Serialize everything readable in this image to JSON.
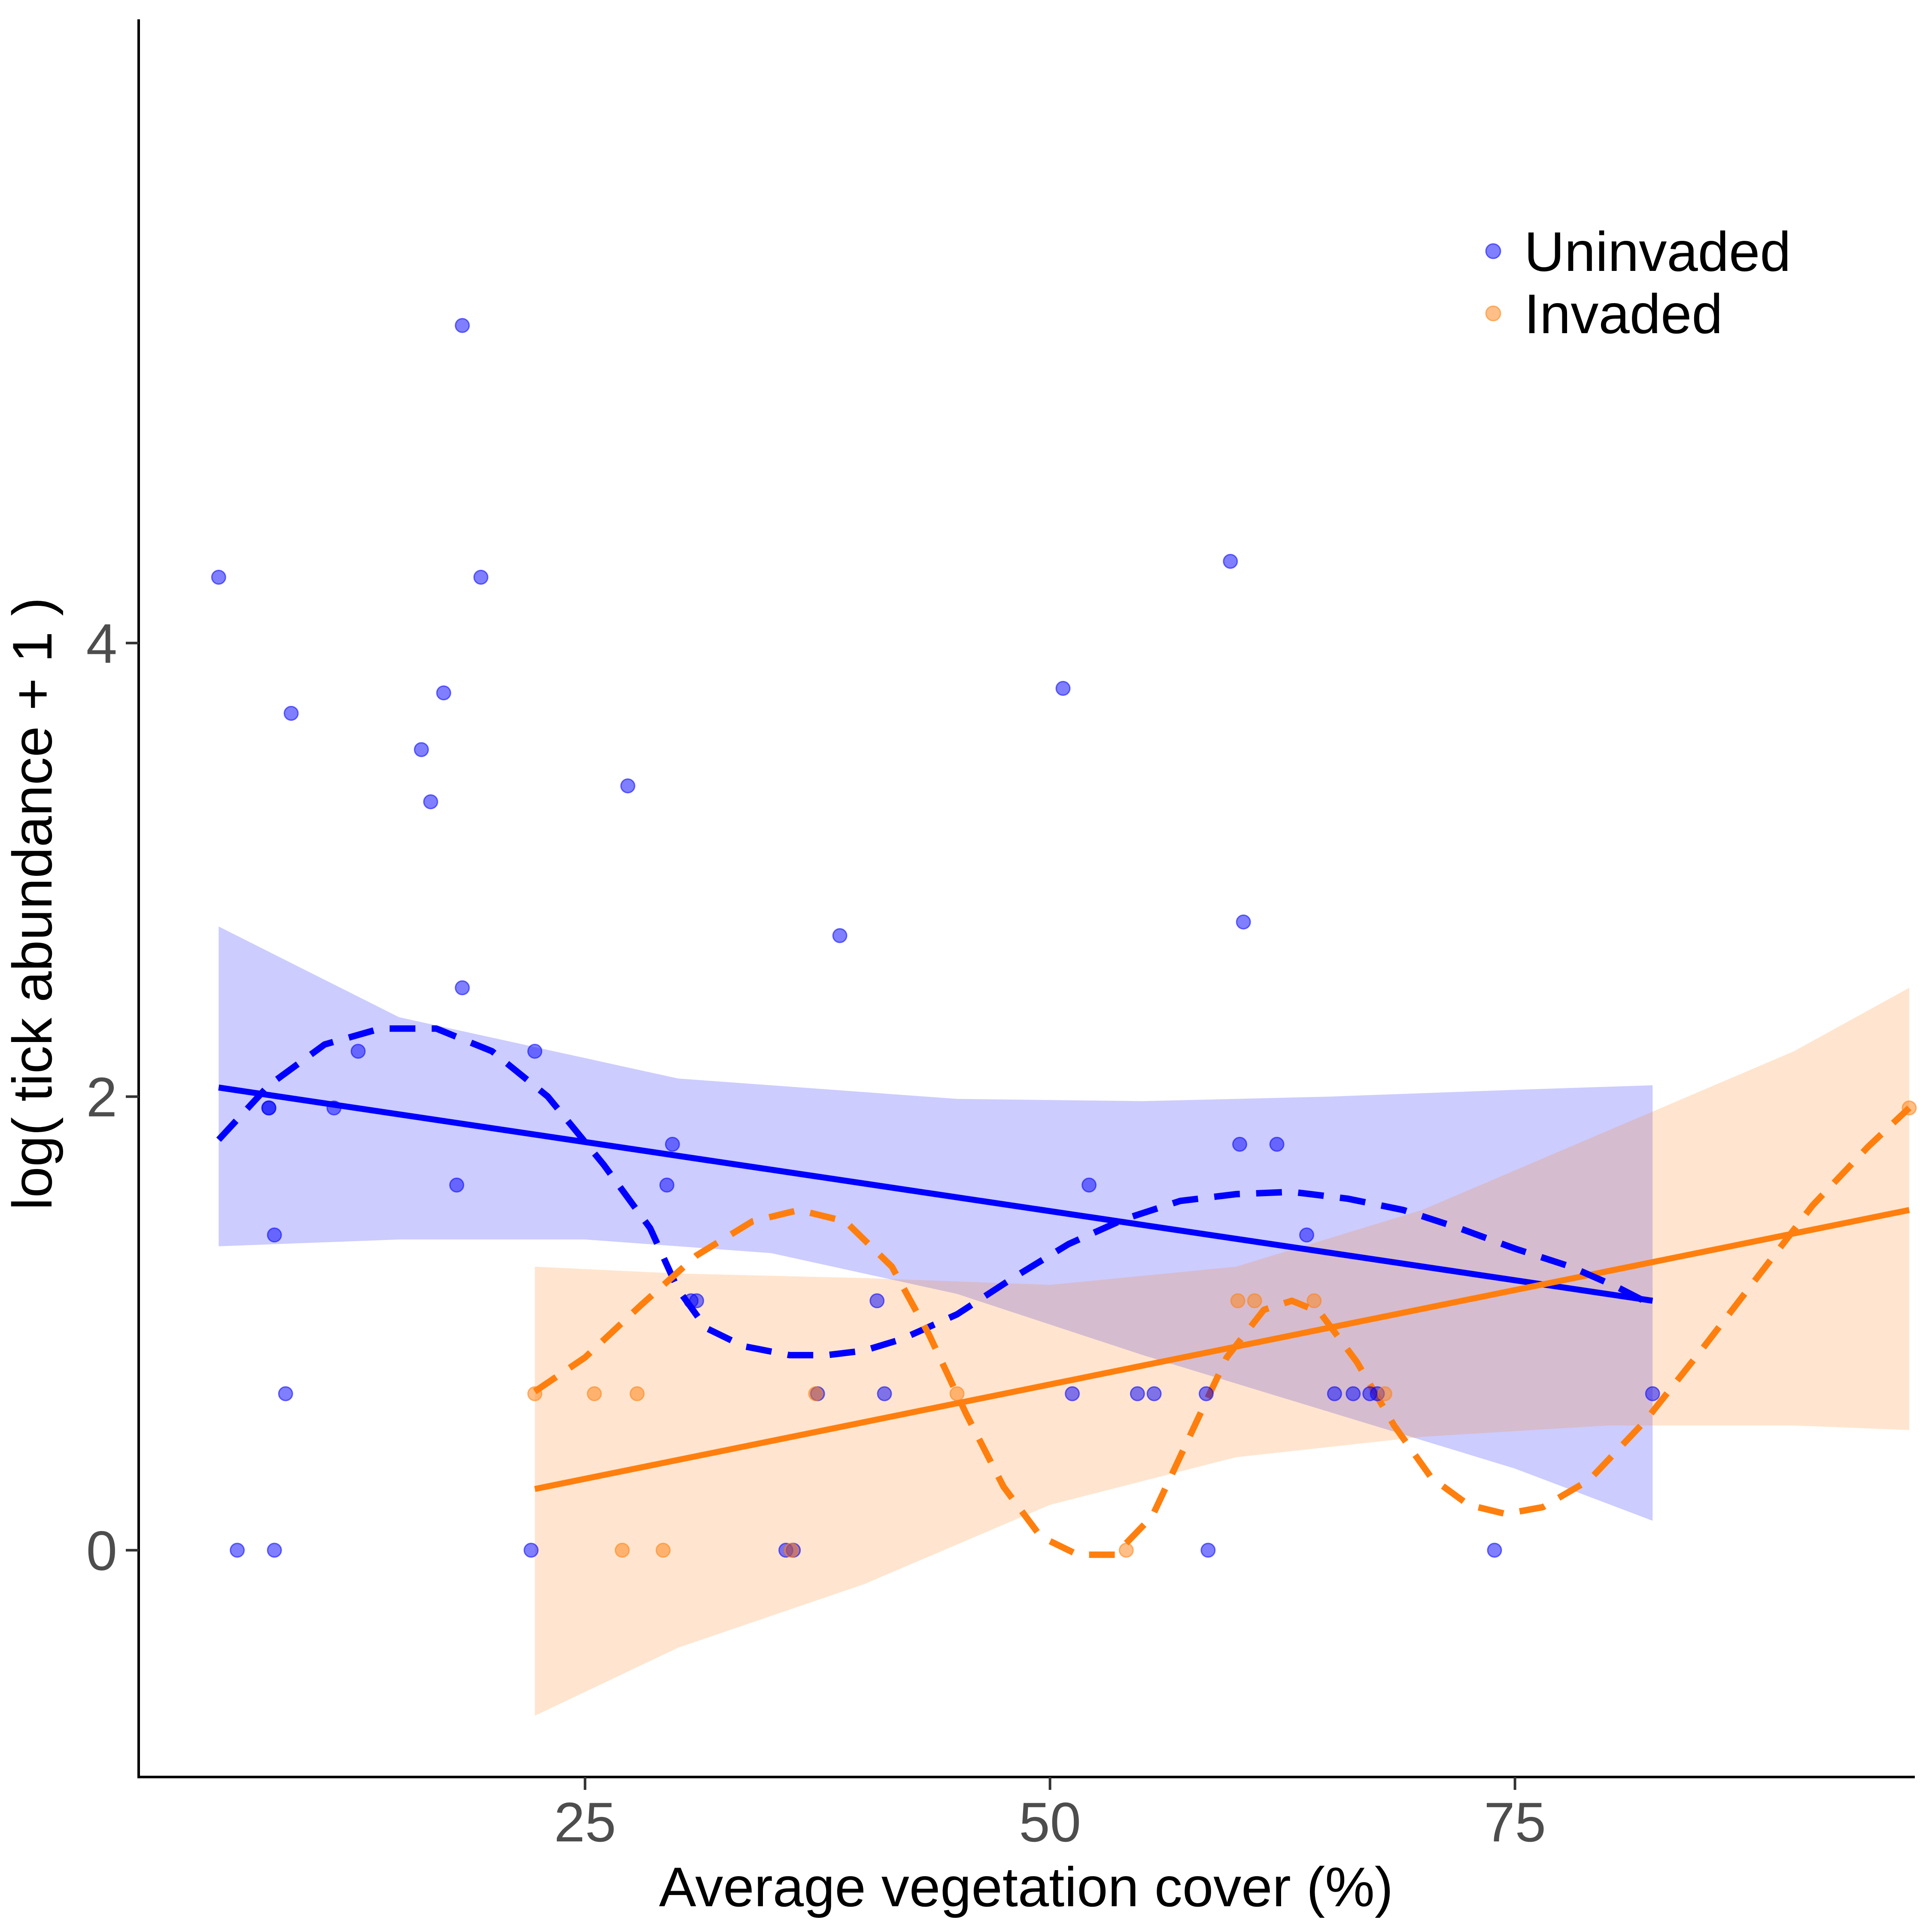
{
  "chart_data": {
    "type": "scatter",
    "title": "",
    "xlabel": "Average vegetation cover (%)",
    "ylabel": "log( tick abundance + 1 )",
    "xlim": [
      1,
      96.5
    ],
    "ylim": [
      -1.0,
      6.75
    ],
    "xticks": [
      25,
      50,
      75
    ],
    "yticks": [
      0,
      2,
      4
    ],
    "grid": false,
    "legend_position": "top-right",
    "series": [
      {
        "name": "Uninvaded",
        "color": "#0000ff",
        "points": [
          [
            5.3,
            4.29
          ],
          [
            6.3,
            0.0
          ],
          [
            8.0,
            1.95
          ],
          [
            8.0,
            1.95
          ],
          [
            8.3,
            1.39
          ],
          [
            8.3,
            0.0
          ],
          [
            8.9,
            0.69
          ],
          [
            9.2,
            3.69
          ],
          [
            11.5,
            1.95
          ],
          [
            12.8,
            2.2
          ],
          [
            16.2,
            3.53
          ],
          [
            16.7,
            3.3
          ],
          [
            17.4,
            3.78
          ],
          [
            18.1,
            1.61
          ],
          [
            18.4,
            2.48
          ],
          [
            18.4,
            5.4
          ],
          [
            19.4,
            4.29
          ],
          [
            22.1,
            0.0
          ],
          [
            22.3,
            2.2
          ],
          [
            27.3,
            3.37
          ],
          [
            29.4,
            1.61
          ],
          [
            29.7,
            1.79
          ],
          [
            30.7,
            1.1
          ],
          [
            31.0,
            1.1
          ],
          [
            35.8,
            0.0
          ],
          [
            36.2,
            0.0
          ],
          [
            37.5,
            0.69
          ],
          [
            38.7,
            2.71
          ],
          [
            40.7,
            1.1
          ],
          [
            41.1,
            0.69
          ],
          [
            50.7,
            3.8
          ],
          [
            51.2,
            0.69
          ],
          [
            52.1,
            1.61
          ],
          [
            54.7,
            0.69
          ],
          [
            55.6,
            0.69
          ],
          [
            58.4,
            0.69
          ],
          [
            58.5,
            0.0
          ],
          [
            59.7,
            4.36
          ],
          [
            60.2,
            1.79
          ],
          [
            60.4,
            2.77
          ],
          [
            62.2,
            1.79
          ],
          [
            63.8,
            1.39
          ],
          [
            65.3,
            0.69
          ],
          [
            66.3,
            0.69
          ],
          [
            67.2,
            0.69
          ],
          [
            67.6,
            0.69
          ],
          [
            73.9,
            0.0
          ],
          [
            82.4,
            0.69
          ]
        ],
        "fit": {
          "x0": 5.3,
          "y0": 2.04,
          "x1": 82.4,
          "y1": 1.1
        },
        "band_upper": [
          [
            5.3,
            2.75
          ],
          [
            15.0,
            2.35
          ],
          [
            30.0,
            2.08
          ],
          [
            45.0,
            1.99
          ],
          [
            55.0,
            1.98
          ],
          [
            65.0,
            2.0
          ],
          [
            75.0,
            2.03
          ],
          [
            82.4,
            2.05
          ]
        ],
        "band_lower": [
          [
            5.3,
            1.34
          ],
          [
            15.0,
            1.37
          ],
          [
            25.0,
            1.37
          ],
          [
            35.0,
            1.31
          ],
          [
            45.0,
            1.13
          ],
          [
            55.0,
            0.86
          ],
          [
            65.0,
            0.61
          ],
          [
            75.0,
            0.36
          ],
          [
            82.4,
            0.13
          ]
        ],
        "smooth": [
          [
            5.3,
            1.81
          ],
          [
            8.0,
            2.05
          ],
          [
            11.0,
            2.23
          ],
          [
            14.0,
            2.3
          ],
          [
            17.0,
            2.3
          ],
          [
            20.0,
            2.2
          ],
          [
            23.0,
            2.0
          ],
          [
            26.0,
            1.7
          ],
          [
            28.5,
            1.42
          ],
          [
            30.0,
            1.15
          ],
          [
            31.5,
            0.98
          ],
          [
            33.5,
            0.9
          ],
          [
            36.0,
            0.86
          ],
          [
            38.0,
            0.86
          ],
          [
            40.0,
            0.88
          ],
          [
            42.0,
            0.93
          ],
          [
            45.0,
            1.04
          ],
          [
            48.0,
            1.2
          ],
          [
            51.0,
            1.35
          ],
          [
            54.0,
            1.46
          ],
          [
            57.0,
            1.54
          ],
          [
            60.0,
            1.57
          ],
          [
            63.0,
            1.58
          ],
          [
            66.0,
            1.55
          ],
          [
            69.0,
            1.5
          ],
          [
            72.0,
            1.42
          ],
          [
            75.0,
            1.33
          ],
          [
            78.0,
            1.25
          ],
          [
            80.5,
            1.16
          ],
          [
            82.4,
            1.08
          ]
        ]
      },
      {
        "name": "Invaded",
        "color": "#ff7f0e",
        "points": [
          [
            22.3,
            0.69
          ],
          [
            25.5,
            0.69
          ],
          [
            27.0,
            0.0
          ],
          [
            27.8,
            0.69
          ],
          [
            29.2,
            0.0
          ],
          [
            36.1,
            0.0
          ],
          [
            37.4,
            0.69
          ],
          [
            45.0,
            0.69
          ],
          [
            54.1,
            0.0
          ],
          [
            60.1,
            1.1
          ],
          [
            61.0,
            1.1
          ],
          [
            64.2,
            1.1
          ],
          [
            68.0,
            0.69
          ],
          [
            96.2,
            1.95
          ]
        ],
        "fit": {
          "x0": 22.3,
          "y0": 0.27,
          "x1": 96.2,
          "y1": 1.5
        },
        "band_upper": [
          [
            22.3,
            1.25
          ],
          [
            30.0,
            1.22
          ],
          [
            40.0,
            1.2
          ],
          [
            50.0,
            1.17
          ],
          [
            60.0,
            1.25
          ],
          [
            70.0,
            1.5
          ],
          [
            80.0,
            1.85
          ],
          [
            90.0,
            2.2
          ],
          [
            96.2,
            2.48
          ]
        ],
        "band_lower": [
          [
            22.3,
            -0.73
          ],
          [
            30.0,
            -0.43
          ],
          [
            40.0,
            -0.15
          ],
          [
            50.0,
            0.2
          ],
          [
            60.0,
            0.41
          ],
          [
            70.0,
            0.5
          ],
          [
            80.0,
            0.55
          ],
          [
            90.0,
            0.55
          ],
          [
            96.2,
            0.53
          ]
        ],
        "smooth": [
          [
            22.3,
            0.7
          ],
          [
            25.0,
            0.85
          ],
          [
            28.0,
            1.08
          ],
          [
            31.0,
            1.3
          ],
          [
            34.0,
            1.45
          ],
          [
            36.5,
            1.5
          ],
          [
            39.0,
            1.45
          ],
          [
            41.5,
            1.25
          ],
          [
            43.5,
            0.95
          ],
          [
            45.5,
            0.6
          ],
          [
            47.5,
            0.28
          ],
          [
            49.5,
            0.06
          ],
          [
            51.5,
            -0.02
          ],
          [
            53.5,
            -0.02
          ],
          [
            55.5,
            0.15
          ],
          [
            57.5,
            0.5
          ],
          [
            59.5,
            0.85
          ],
          [
            61.5,
            1.06
          ],
          [
            63.0,
            1.1
          ],
          [
            64.5,
            1.05
          ],
          [
            66.5,
            0.83
          ],
          [
            68.5,
            0.55
          ],
          [
            70.5,
            0.32
          ],
          [
            72.5,
            0.2
          ],
          [
            74.5,
            0.16
          ],
          [
            76.5,
            0.19
          ],
          [
            79.0,
            0.31
          ],
          [
            82.0,
            0.57
          ],
          [
            85.0,
            0.88
          ],
          [
            88.0,
            1.2
          ],
          [
            91.0,
            1.52
          ],
          [
            94.0,
            1.78
          ],
          [
            96.2,
            1.95
          ]
        ]
      }
    ]
  }
}
